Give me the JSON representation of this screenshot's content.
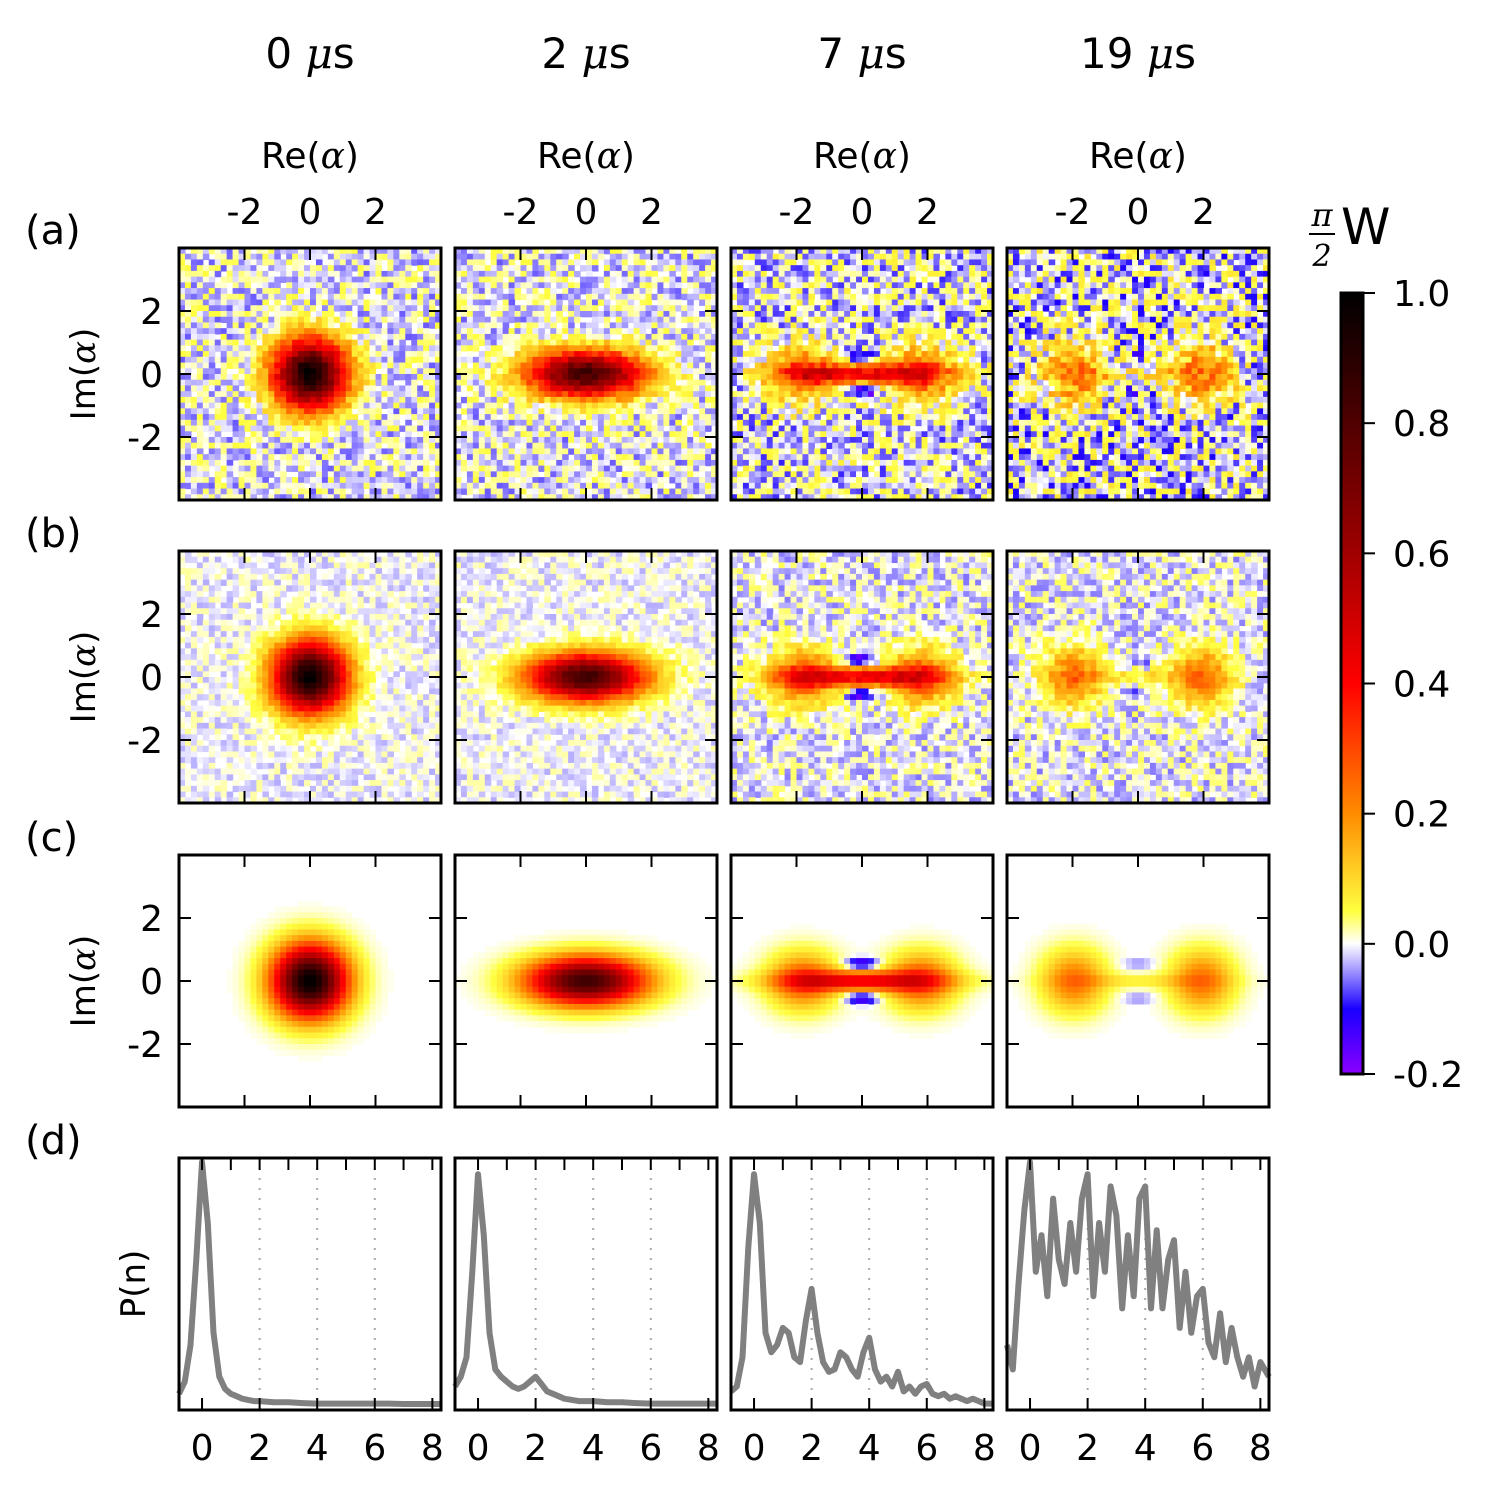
{
  "chart_data": {
    "type": "heatmap",
    "time_labels": [
      "0",
      "2",
      "7",
      "19"
    ],
    "time_unit": "s",
    "time_unit_symbol": "μ",
    "row_labels": [
      "(a)",
      "(b)",
      "(c)",
      "(d)"
    ],
    "xlabel": "Re(",
    "ylabel": "Im(",
    "axis_symbol": "α",
    "axis_close": ")",
    "ylabel_d": "P(n)",
    "x_ticks": [
      "-2",
      "0",
      "2"
    ],
    "y_ticks": [
      "2",
      "0",
      "-2"
    ],
    "x_tick_values": [
      -2,
      0,
      2
    ],
    "y_tick_values": [
      2,
      0,
      -2
    ],
    "xlim": [
      -4,
      4
    ],
    "ylim": [
      -4,
      4
    ],
    "n_ticks": [
      "0",
      "2",
      "4",
      "6",
      "8"
    ],
    "n_tick_values": [
      0,
      2,
      4,
      6,
      8
    ],
    "n_range": [
      -0.8,
      8.3
    ],
    "colorbar": {
      "label_num": "π",
      "label_den": "2",
      "label_var": "W",
      "ticks": [
        "1.0",
        "0.8",
        "0.6",
        "0.4",
        "0.2",
        "0.0",
        "-0.2"
      ],
      "tick_values": [
        1.0,
        0.8,
        0.6,
        0.4,
        0.2,
        0.0,
        -0.2
      ],
      "range": [
        -0.2,
        1.0
      ],
      "stops": [
        {
          "v": -0.2,
          "c": "#8b00ff"
        },
        {
          "v": -0.1,
          "c": "#1a00ff"
        },
        {
          "v": 0.0,
          "c": "#ffffff"
        },
        {
          "v": 0.05,
          "c": "#ffff40"
        },
        {
          "v": 0.2,
          "c": "#ff8c00"
        },
        {
          "v": 0.4,
          "c": "#ff0000"
        },
        {
          "v": 0.6,
          "c": "#a00000"
        },
        {
          "v": 0.8,
          "c": "#500000"
        },
        {
          "v": 1.0,
          "c": "#000000"
        }
      ]
    },
    "line_color": "#808080",
    "wigner": [
      {
        "time": "0",
        "lobes": [
          {
            "x": 0,
            "y": 0,
            "sx": 0.75,
            "sy": 0.75,
            "a": 1.0
          }
        ],
        "fringe": 0,
        "noise": [
          0.12,
          0.06,
          0.0
        ]
      },
      {
        "time": "2",
        "lobes": [
          {
            "x": 0,
            "y": 0,
            "sx": 1.2,
            "sy": 0.5,
            "a": 0.85
          }
        ],
        "fringe": 0,
        "noise": [
          0.12,
          0.06,
          0.0
        ]
      },
      {
        "time": "7",
        "lobes": [
          {
            "x": -1.8,
            "y": 0,
            "sx": 0.7,
            "sy": 0.6,
            "a": 0.28
          },
          {
            "x": 1.8,
            "y": 0,
            "sx": 0.7,
            "sy": 0.6,
            "a": 0.28
          },
          {
            "x": 0,
            "y": 0,
            "sx": 1.6,
            "sy": 0.22,
            "a": 0.42
          }
        ],
        "fringe": 0.2,
        "noise": [
          0.16,
          0.1,
          0.0
        ]
      },
      {
        "time": "19",
        "lobes": [
          {
            "x": -1.95,
            "y": 0,
            "sx": 0.65,
            "sy": 0.65,
            "a": 0.24
          },
          {
            "x": 1.95,
            "y": 0,
            "sx": 0.65,
            "sy": 0.65,
            "a": 0.24
          },
          {
            "x": 0,
            "y": 0,
            "sx": 1.6,
            "sy": 0.15,
            "a": 0.07
          }
        ],
        "fringe": 0.05,
        "noise": [
          0.2,
          0.1,
          0.0
        ]
      }
    ],
    "photon_number": [
      {
        "time": "0",
        "n": [
          -0.8,
          -0.6,
          -0.4,
          -0.2,
          0,
          0.2,
          0.4,
          0.6,
          0.8,
          1,
          1.2,
          1.4,
          1.6,
          1.8,
          2,
          2.5,
          3,
          3.5,
          4,
          4.5,
          5,
          5.5,
          6,
          6.5,
          7,
          7.5,
          8,
          8.3
        ],
        "p": [
          0.05,
          0.1,
          0.25,
          0.6,
          1.0,
          0.75,
          0.3,
          0.12,
          0.07,
          0.05,
          0.04,
          0.03,
          0.025,
          0.02,
          0.02,
          0.015,
          0.015,
          0.012,
          0.01,
          0.01,
          0.01,
          0.01,
          0.01,
          0.01,
          0.008,
          0.008,
          0.008,
          0.008
        ]
      },
      {
        "time": "2",
        "n": [
          -0.8,
          -0.6,
          -0.4,
          -0.2,
          0,
          0.2,
          0.4,
          0.6,
          0.8,
          1,
          1.2,
          1.4,
          1.6,
          1.8,
          2,
          2.2,
          2.4,
          2.6,
          2.8,
          3,
          3.5,
          4,
          4.5,
          5,
          5.5,
          6,
          6.5,
          7,
          7.5,
          8,
          8.3
        ],
        "p": [
          0.08,
          0.12,
          0.2,
          0.55,
          0.95,
          0.7,
          0.3,
          0.15,
          0.12,
          0.1,
          0.08,
          0.07,
          0.08,
          0.1,
          0.12,
          0.09,
          0.06,
          0.05,
          0.04,
          0.03,
          0.02,
          0.02,
          0.015,
          0.015,
          0.012,
          0.01,
          0.01,
          0.01,
          0.01,
          0.01,
          0.01
        ]
      },
      {
        "time": "7",
        "n": [
          -0.8,
          -0.6,
          -0.4,
          -0.2,
          0,
          0.2,
          0.4,
          0.6,
          0.8,
          1,
          1.2,
          1.4,
          1.6,
          1.8,
          2,
          2.2,
          2.4,
          2.6,
          2.8,
          3,
          3.2,
          3.4,
          3.6,
          3.8,
          4,
          4.2,
          4.4,
          4.6,
          4.8,
          5,
          5.2,
          5.4,
          5.6,
          5.8,
          6,
          6.2,
          6.4,
          6.6,
          6.8,
          7,
          7.2,
          7.4,
          7.6,
          7.8,
          8,
          8.3
        ],
        "p": [
          0.06,
          0.08,
          0.2,
          0.65,
          0.95,
          0.75,
          0.3,
          0.22,
          0.25,
          0.32,
          0.3,
          0.2,
          0.18,
          0.35,
          0.48,
          0.3,
          0.18,
          0.14,
          0.15,
          0.22,
          0.2,
          0.15,
          0.12,
          0.22,
          0.28,
          0.15,
          0.1,
          0.12,
          0.08,
          0.14,
          0.06,
          0.08,
          0.05,
          0.08,
          0.09,
          0.05,
          0.04,
          0.05,
          0.03,
          0.04,
          0.03,
          0.02,
          0.03,
          0.02,
          0.01,
          0.01
        ]
      },
      {
        "time": "19",
        "n": [
          -0.8,
          -0.6,
          -0.4,
          -0.2,
          0,
          0.2,
          0.4,
          0.6,
          0.8,
          1,
          1.2,
          1.4,
          1.6,
          1.8,
          2,
          2.2,
          2.4,
          2.6,
          2.8,
          3,
          3.2,
          3.4,
          3.6,
          3.8,
          4,
          4.2,
          4.4,
          4.6,
          4.8,
          5,
          5.2,
          5.4,
          5.6,
          5.8,
          6,
          6.2,
          6.4,
          6.6,
          6.8,
          7,
          7.2,
          7.4,
          7.6,
          7.8,
          8,
          8.3
        ],
        "p": [
          0.25,
          0.15,
          0.5,
          0.8,
          1.0,
          0.55,
          0.7,
          0.45,
          0.85,
          0.6,
          0.5,
          0.75,
          0.55,
          0.85,
          0.95,
          0.45,
          0.75,
          0.55,
          0.9,
          0.78,
          0.4,
          0.7,
          0.45,
          0.85,
          0.9,
          0.4,
          0.72,
          0.4,
          0.6,
          0.68,
          0.32,
          0.55,
          0.3,
          0.45,
          0.48,
          0.26,
          0.2,
          0.38,
          0.18,
          0.32,
          0.2,
          0.12,
          0.2,
          0.08,
          0.18,
          0.12
        ]
      }
    ]
  }
}
